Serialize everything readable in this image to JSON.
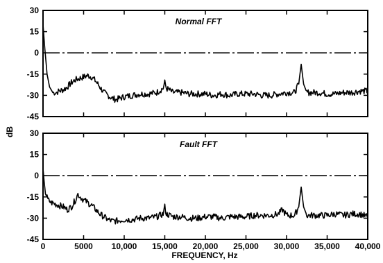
{
  "chart_data": [
    {
      "type": "line",
      "title": "Normal FFT",
      "xlabel": "FREQUENCY, Hz",
      "ylabel": "dB",
      "xlim": [
        0,
        40000
      ],
      "ylim": [
        -45,
        30
      ],
      "xticks": [
        0,
        5000,
        10000,
        15000,
        20000,
        25000,
        30000,
        35000,
        40000
      ],
      "yticks": [
        30,
        15,
        0,
        -15,
        -30,
        -45
      ],
      "series": [
        {
          "style": "spectrum",
          "x": [
            0,
            150,
            300,
            500,
            800,
            1200,
            1600,
            2000,
            2500,
            3000,
            3500,
            4000,
            4500,
            5000,
            5500,
            6000,
            6500,
            7000,
            7500,
            8000,
            8500,
            9000,
            9500,
            10000,
            11000,
            12000,
            13000,
            14000,
            14800,
            15000,
            15200,
            16000,
            17000,
            18000,
            19000,
            20000,
            21000,
            22000,
            23000,
            24000,
            25000,
            26000,
            27000,
            28000,
            29000,
            30000,
            31000,
            31500,
            31800,
            32100,
            32500,
            33000,
            34000,
            35000,
            36000,
            37000,
            38000,
            39000,
            40000
          ],
          "y": [
            20,
            8,
            -2,
            -15,
            -24,
            -28,
            -28,
            -27,
            -26,
            -24,
            -21,
            -19,
            -18,
            -17,
            -16,
            -17,
            -20,
            -24,
            -28,
            -30,
            -32,
            -33,
            -32,
            -31,
            -30,
            -29,
            -29,
            -28,
            -25,
            -21,
            -25,
            -28,
            -28,
            -29,
            -29,
            -29,
            -30,
            -29,
            -30,
            -29,
            -29,
            -29,
            -30,
            -30,
            -29,
            -28,
            -28,
            -22,
            -8,
            -22,
            -28,
            -28,
            -28,
            -29,
            -29,
            -28,
            -28,
            -27,
            -27
          ]
        },
        {
          "style": "dash-dot",
          "x": [
            0,
            40000
          ],
          "y": [
            0,
            0
          ]
        }
      ]
    },
    {
      "type": "line",
      "title": "Fault FFT",
      "xlabel": "FREQUENCY, Hz",
      "ylabel": "dB",
      "xlim": [
        0,
        40000
      ],
      "ylim": [
        -45,
        30
      ],
      "xticks": [
        0,
        5000,
        10000,
        15000,
        20000,
        25000,
        30000,
        35000,
        40000
      ],
      "xtick_labels": [
        "0",
        "5000",
        "10,000",
        "15,000",
        "20,000",
        "25,000",
        "30,000",
        "35,000",
        "40,000"
      ],
      "yticks": [
        30,
        15,
        0,
        -15,
        -30,
        -45
      ],
      "series": [
        {
          "style": "spectrum",
          "x": [
            0,
            150,
            300,
            600,
            1000,
            1500,
            2000,
            2500,
            3000,
            3500,
            4000,
            4300,
            4600,
            5000,
            5500,
            6000,
            6500,
            7000,
            7500,
            8000,
            8500,
            9000,
            10000,
            11000,
            12000,
            13000,
            14000,
            14800,
            15000,
            15200,
            16000,
            17000,
            18000,
            19000,
            20000,
            21000,
            22000,
            23000,
            24000,
            25000,
            26000,
            27000,
            28000,
            29000,
            29500,
            30000,
            31000,
            31500,
            31800,
            32100,
            32500,
            33000,
            34000,
            35000,
            36000,
            37000,
            38000,
            39000,
            40000
          ],
          "y": [
            5,
            -5,
            -12,
            -17,
            -19,
            -20,
            -21,
            -22,
            -24,
            -22,
            -17,
            -13,
            -15,
            -17,
            -19,
            -21,
            -24,
            -27,
            -29,
            -31,
            -32,
            -32,
            -31,
            -31,
            -30,
            -30,
            -29,
            -27,
            -22,
            -27,
            -29,
            -29,
            -30,
            -30,
            -29,
            -29,
            -30,
            -29,
            -29,
            -29,
            -28,
            -28,
            -28,
            -27,
            -24,
            -28,
            -28,
            -22,
            -8,
            -22,
            -28,
            -28,
            -28,
            -28,
            -27,
            -28,
            -27,
            -27,
            -29
          ]
        },
        {
          "style": "dash-dot",
          "x": [
            0,
            40000
          ],
          "y": [
            0,
            0
          ]
        }
      ]
    }
  ],
  "chart_data_shared": {
    "ylabel": "dB",
    "xlabel": "FREQUENCY, Hz"
  }
}
